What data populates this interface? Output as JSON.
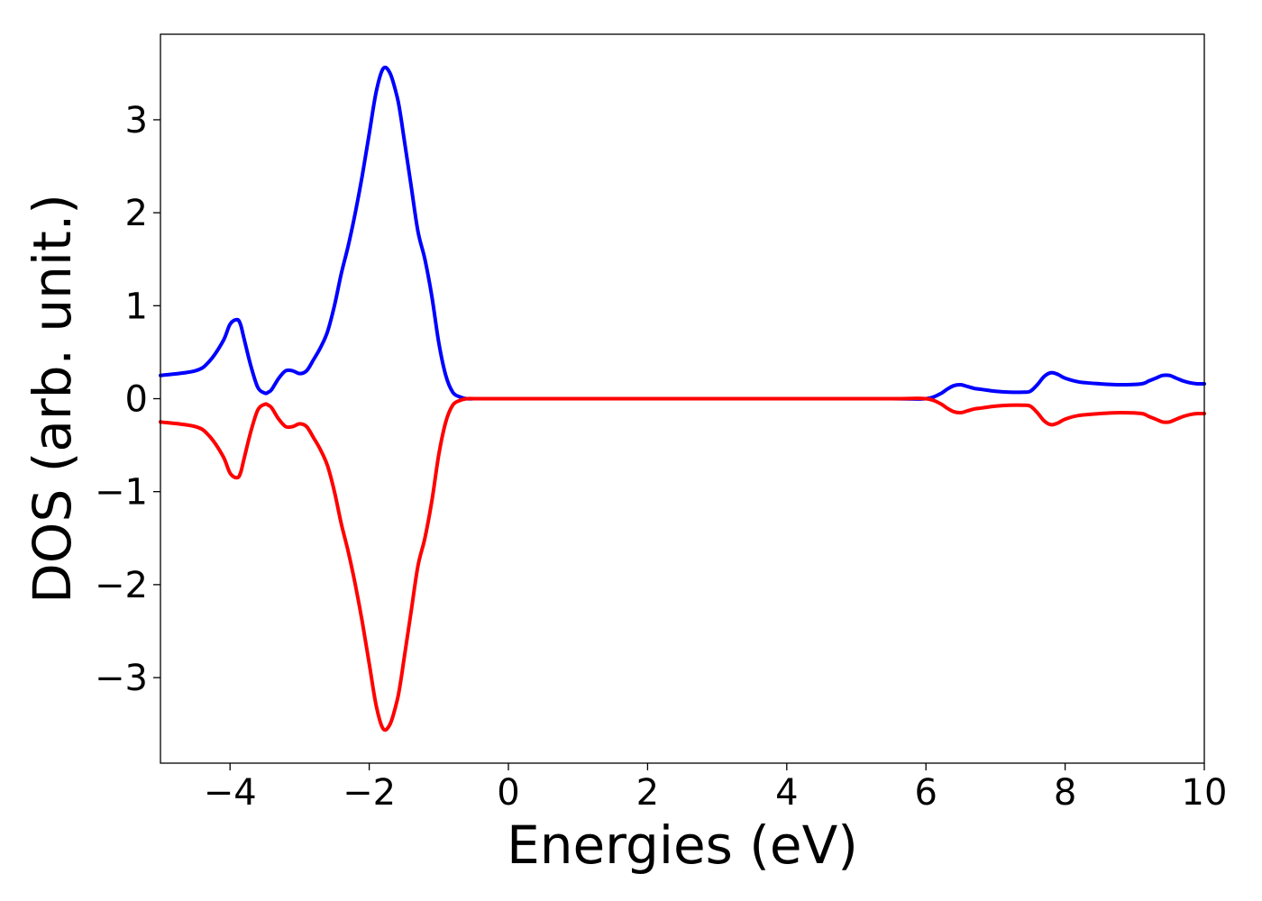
{
  "chart_data": {
    "type": "line",
    "title": "",
    "xlabel": "Energies (eV)",
    "ylabel": "DOS (arb. unit.)",
    "xlim": [
      -5,
      10
    ],
    "ylim": [
      -3.92,
      3.92
    ],
    "grid": false,
    "legend": "none",
    "x_ticks": [
      {
        "value": -4,
        "label": "−4"
      },
      {
        "value": -2,
        "label": "−2"
      },
      {
        "value": 0,
        "label": "0"
      },
      {
        "value": 2,
        "label": "2"
      },
      {
        "value": 4,
        "label": "4"
      },
      {
        "value": 6,
        "label": "6"
      },
      {
        "value": 8,
        "label": "8"
      },
      {
        "value": 10,
        "label": "10"
      }
    ],
    "y_ticks": [
      {
        "value": 3,
        "label": "3"
      },
      {
        "value": 2,
        "label": "2"
      },
      {
        "value": 1,
        "label": "1"
      },
      {
        "value": 0,
        "label": "0"
      },
      {
        "value": -1,
        "label": "−1"
      },
      {
        "value": -2,
        "label": "−2"
      },
      {
        "value": -3,
        "label": "−3"
      }
    ],
    "series": [
      {
        "color": "#0000ff",
        "x": [
          -5.0,
          -4.5,
          -4.3,
          -4.1,
          -4.0,
          -3.9,
          -3.85,
          -3.8,
          -3.7,
          -3.6,
          -3.5,
          -3.45,
          -3.4,
          -3.3,
          -3.2,
          -3.1,
          -3.0,
          -2.9,
          -2.8,
          -2.7,
          -2.6,
          -2.5,
          -2.4,
          -2.3,
          -2.2,
          -2.1,
          -2.0,
          -1.9,
          -1.8,
          -1.7,
          -1.6,
          -1.55,
          -1.5,
          -1.4,
          -1.3,
          -1.2,
          -1.1,
          -1.0,
          -0.9,
          -0.8,
          -0.7,
          -0.6,
          -0.5,
          -0.4,
          -0.3,
          0.0,
          2.0,
          4.0,
          5.5,
          6.0,
          6.2,
          6.3,
          6.4,
          6.5,
          6.6,
          6.7,
          6.8,
          7.0,
          7.2,
          7.4,
          7.5,
          7.6,
          7.7,
          7.8,
          7.9,
          8.0,
          8.2,
          8.5,
          8.8,
          9.1,
          9.2,
          9.3,
          9.4,
          9.5,
          9.6,
          9.7,
          9.8,
          9.9,
          10.0
        ],
        "y": [
          0.25,
          0.3,
          0.4,
          0.62,
          0.8,
          0.85,
          0.8,
          0.65,
          0.35,
          0.12,
          0.06,
          0.07,
          0.1,
          0.22,
          0.3,
          0.3,
          0.27,
          0.3,
          0.42,
          0.55,
          0.72,
          1.0,
          1.35,
          1.65,
          2.0,
          2.4,
          2.85,
          3.3,
          3.55,
          3.5,
          3.25,
          3.05,
          2.8,
          2.3,
          1.8,
          1.5,
          1.1,
          0.6,
          0.25,
          0.07,
          0.02,
          0.0,
          0.0,
          0.0,
          0.0,
          0.0,
          0.0,
          0.0,
          0.0,
          0.0,
          0.05,
          0.1,
          0.14,
          0.15,
          0.13,
          0.11,
          0.1,
          0.08,
          0.07,
          0.07,
          0.08,
          0.15,
          0.24,
          0.28,
          0.26,
          0.22,
          0.18,
          0.16,
          0.15,
          0.16,
          0.19,
          0.22,
          0.25,
          0.25,
          0.22,
          0.19,
          0.17,
          0.16,
          0.16
        ]
      },
      {
        "color": "#ff0000",
        "x": [
          -5.0,
          -4.5,
          -4.3,
          -4.1,
          -4.0,
          -3.9,
          -3.85,
          -3.8,
          -3.7,
          -3.6,
          -3.5,
          -3.45,
          -3.4,
          -3.3,
          -3.2,
          -3.1,
          -3.0,
          -2.9,
          -2.8,
          -2.7,
          -2.6,
          -2.5,
          -2.4,
          -2.3,
          -2.2,
          -2.1,
          -2.0,
          -1.9,
          -1.8,
          -1.7,
          -1.6,
          -1.55,
          -1.5,
          -1.4,
          -1.3,
          -1.2,
          -1.1,
          -1.0,
          -0.9,
          -0.8,
          -0.7,
          -0.6,
          -0.5,
          -0.4,
          -0.3,
          0.0,
          2.0,
          4.0,
          5.5,
          6.0,
          6.2,
          6.3,
          6.4,
          6.5,
          6.6,
          6.7,
          6.8,
          7.0,
          7.2,
          7.4,
          7.5,
          7.6,
          7.7,
          7.8,
          7.9,
          8.0,
          8.2,
          8.5,
          8.8,
          9.1,
          9.2,
          9.3,
          9.4,
          9.5,
          9.6,
          9.7,
          9.8,
          9.9,
          10.0
        ],
        "y": [
          -0.25,
          -0.3,
          -0.4,
          -0.62,
          -0.8,
          -0.85,
          -0.8,
          -0.65,
          -0.35,
          -0.12,
          -0.06,
          -0.07,
          -0.1,
          -0.22,
          -0.3,
          -0.3,
          -0.27,
          -0.3,
          -0.42,
          -0.55,
          -0.72,
          -1.0,
          -1.35,
          -1.65,
          -2.0,
          -2.4,
          -2.85,
          -3.3,
          -3.55,
          -3.5,
          -3.25,
          -3.05,
          -2.8,
          -2.3,
          -1.8,
          -1.5,
          -1.1,
          -0.6,
          -0.25,
          -0.07,
          -0.02,
          0.0,
          0.0,
          0.0,
          0.0,
          0.0,
          0.0,
          0.0,
          0.0,
          0.0,
          -0.05,
          -0.1,
          -0.14,
          -0.15,
          -0.13,
          -0.11,
          -0.1,
          -0.08,
          -0.07,
          -0.07,
          -0.08,
          -0.15,
          -0.24,
          -0.28,
          -0.26,
          -0.22,
          -0.18,
          -0.16,
          -0.15,
          -0.16,
          -0.19,
          -0.22,
          -0.25,
          -0.25,
          -0.22,
          -0.19,
          -0.17,
          -0.16,
          -0.16
        ]
      }
    ]
  }
}
